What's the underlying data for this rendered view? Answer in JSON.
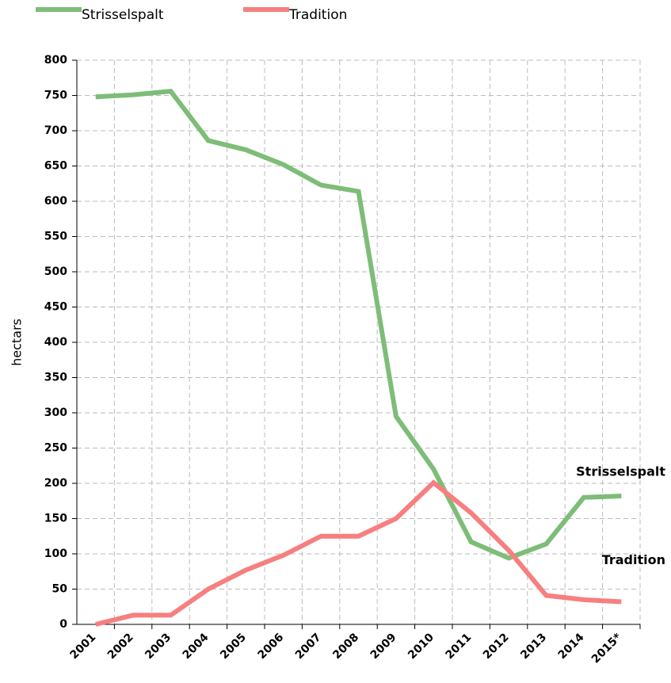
{
  "chart_data": {
    "type": "line",
    "y_label": "hectars",
    "categories": [
      "2001",
      "2002",
      "2003",
      "2004",
      "2005",
      "2006",
      "2007",
      "2008",
      "2009",
      "2010",
      "2011",
      "2012",
      "2013",
      "2014",
      "2015*"
    ],
    "series": [
      {
        "name": "Strisselspalt",
        "color": "#7dbd78",
        "values": [
          748,
          751,
          756,
          686,
          673,
          652,
          623,
          614,
          295,
          220,
          117,
          94,
          114,
          180,
          182
        ]
      },
      {
        "name": "Tradition",
        "color": "#f77f7f",
        "values": [
          0,
          13,
          13,
          50,
          77,
          98,
          125,
          125,
          150,
          201,
          158,
          105,
          41,
          35,
          32
        ]
      }
    ],
    "annotations": [
      {
        "text": "Strisselspalt",
        "color": "#2a8a22"
      },
      {
        "text": "Tradition",
        "color": "#ff1a1a"
      }
    ],
    "ylim": [
      0,
      800
    ],
    "yticks": [
      0,
      50,
      100,
      150,
      200,
      250,
      300,
      350,
      400,
      450,
      500,
      550,
      600,
      650,
      700,
      750,
      800
    ],
    "grid": true,
    "legend": "top"
  }
}
